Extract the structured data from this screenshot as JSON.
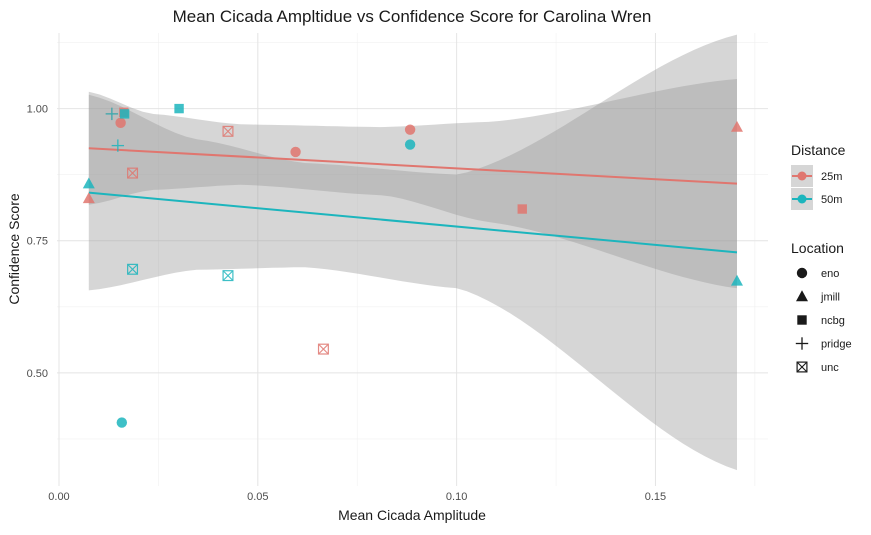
{
  "chart_data": {
    "type": "scatter",
    "title": "Mean Cicada Ampltidue vs Confidence Score for Carolina Wren",
    "xlabel": "Mean Cicada Amplitude",
    "ylabel": "Confidence Score",
    "xlim": [
      -0.0005,
      0.1783
    ],
    "ylim": [
      0.286,
      1.143
    ],
    "xticks": [
      0.0,
      0.05,
      0.1,
      0.15
    ],
    "xtick_labels": [
      "0.00",
      "0.05",
      "0.10",
      "0.15"
    ],
    "yticks": [
      0.5,
      0.75,
      1.0
    ],
    "ytick_labels": [
      "0.50",
      "0.75",
      "1.00"
    ],
    "x_minor": [
      0.025,
      0.075,
      0.125,
      0.175
    ],
    "y_minor": [
      0.375,
      0.625,
      0.875,
      1.125
    ],
    "grid": true,
    "colors": {
      "25m": "#E0766F",
      "50m": "#1CB5BD",
      "ribbon": "#999999"
    },
    "points": [
      {
        "x": 0.0075,
        "y": 0.83,
        "distance": "25m",
        "location": "jmill"
      },
      {
        "x": 0.0155,
        "y": 0.973,
        "distance": "25m",
        "location": "eno"
      },
      {
        "x": 0.0163,
        "y": 0.993,
        "distance": "25m",
        "location": "ncbg"
      },
      {
        "x": 0.0185,
        "y": 0.878,
        "distance": "25m",
        "location": "unc"
      },
      {
        "x": 0.0425,
        "y": 0.957,
        "distance": "25m",
        "location": "unc"
      },
      {
        "x": 0.0595,
        "y": 0.918,
        "distance": "25m",
        "location": "eno"
      },
      {
        "x": 0.0665,
        "y": 0.545,
        "distance": "25m",
        "location": "unc"
      },
      {
        "x": 0.0883,
        "y": 0.96,
        "distance": "25m",
        "location": "eno"
      },
      {
        "x": 0.1165,
        "y": 0.81,
        "distance": "25m",
        "location": "ncbg"
      },
      {
        "x": 0.1705,
        "y": 0.965,
        "distance": "25m",
        "location": "jmill"
      },
      {
        "x": 0.0133,
        "y": 0.99,
        "distance": "25m",
        "location": "pridge"
      },
      {
        "x": 0.0075,
        "y": 0.858,
        "distance": "50m",
        "location": "jmill"
      },
      {
        "x": 0.0133,
        "y": 0.99,
        "distance": "50m",
        "location": "pridge"
      },
      {
        "x": 0.0148,
        "y": 0.93,
        "distance": "50m",
        "location": "pridge"
      },
      {
        "x": 0.0165,
        "y": 0.99,
        "distance": "50m",
        "location": "ncbg"
      },
      {
        "x": 0.0158,
        "y": 0.406,
        "distance": "50m",
        "location": "eno"
      },
      {
        "x": 0.0185,
        "y": 0.696,
        "distance": "50m",
        "location": "unc"
      },
      {
        "x": 0.0302,
        "y": 1.0,
        "distance": "50m",
        "location": "ncbg"
      },
      {
        "x": 0.0425,
        "y": 0.684,
        "distance": "50m",
        "location": "unc"
      },
      {
        "x": 0.0883,
        "y": 0.932,
        "distance": "50m",
        "location": "eno"
      },
      {
        "x": 0.1705,
        "y": 0.674,
        "distance": "50m",
        "location": "jmill"
      }
    ],
    "fits": [
      {
        "name": "25m",
        "x": [
          0.0075,
          0.1705
        ],
        "y": [
          0.925,
          0.858
        ],
        "band_x": [
          0.0075,
          0.0232,
          0.046,
          0.0815,
          0.1085,
          0.1705
        ],
        "band_upper": [
          1.032,
          0.99,
          0.97,
          0.965,
          0.975,
          1.056
        ],
        "band_lower": [
          0.818,
          0.846,
          0.856,
          0.836,
          0.785,
          0.66
        ]
      },
      {
        "name": "50m",
        "x": [
          0.0075,
          0.1705
        ],
        "y": [
          0.841,
          0.728
        ],
        "band_x": [
          0.0075,
          0.0345,
          0.0618,
          0.1005,
          0.1705
        ],
        "band_upper": [
          1.026,
          0.942,
          0.897,
          0.875,
          1.14
        ],
        "band_lower": [
          0.656,
          0.695,
          0.7,
          0.66,
          0.316
        ]
      }
    ],
    "legend": {
      "placement": "right",
      "distance_title": "Distance",
      "distance_items": [
        "25m",
        "50m"
      ],
      "location_title": "Location",
      "location_items": [
        "eno",
        "jmill",
        "ncbg",
        "pridge",
        "unc"
      ]
    }
  }
}
